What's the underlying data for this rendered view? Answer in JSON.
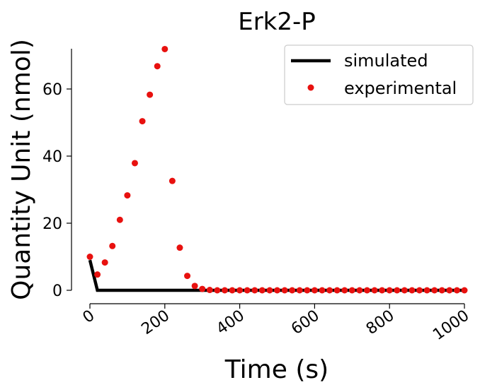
{
  "chart_data": {
    "type": "line",
    "title": "Erk2-P",
    "xlabel": "Time (s)",
    "ylabel": "Quantity Unit (nmol)",
    "xlim": [
      0,
      1000
    ],
    "ylim": [
      -3,
      72
    ],
    "x_ticks": [
      "0",
      "200",
      "400",
      "600",
      "800",
      "1000"
    ],
    "y_ticks": [
      "0",
      "20",
      "40",
      "60"
    ],
    "grid": false,
    "legend_position": "top-right",
    "series": [
      {
        "name": "simulated",
        "kind": "line",
        "color": "#000000",
        "x": [
          0,
          20,
          100,
          200,
          300,
          400,
          500,
          600,
          700,
          800,
          900,
          1000
        ],
        "y": [
          9,
          0,
          0,
          0,
          0,
          0,
          0,
          0,
          0,
          0,
          0,
          0
        ]
      },
      {
        "name": "experimental",
        "kind": "scatter",
        "color": "#e8110f",
        "x": [
          0,
          20,
          40,
          60,
          80,
          100,
          120,
          140,
          160,
          180,
          200,
          220,
          240,
          260,
          280,
          300,
          320,
          340,
          360,
          380,
          400,
          420,
          440,
          460,
          480,
          500,
          520,
          540,
          560,
          580,
          600,
          620,
          640,
          660,
          680,
          700,
          720,
          740,
          760,
          780,
          800,
          820,
          840,
          860,
          880,
          900,
          920,
          940,
          960,
          980,
          1000
        ],
        "y": [
          10,
          4.7,
          8.3,
          13.2,
          21,
          28.3,
          37.9,
          50.4,
          58.3,
          66.8,
          71.9,
          32.6,
          12.7,
          4.3,
          1.3,
          0.4,
          0.1,
          0,
          0,
          0,
          0,
          0,
          0,
          0,
          0,
          0,
          0,
          0,
          0,
          0,
          0,
          0,
          0,
          0,
          0,
          0,
          0,
          0,
          0,
          0,
          0,
          0,
          0,
          0,
          0,
          0,
          0,
          0,
          0,
          0,
          0
        ]
      }
    ]
  }
}
